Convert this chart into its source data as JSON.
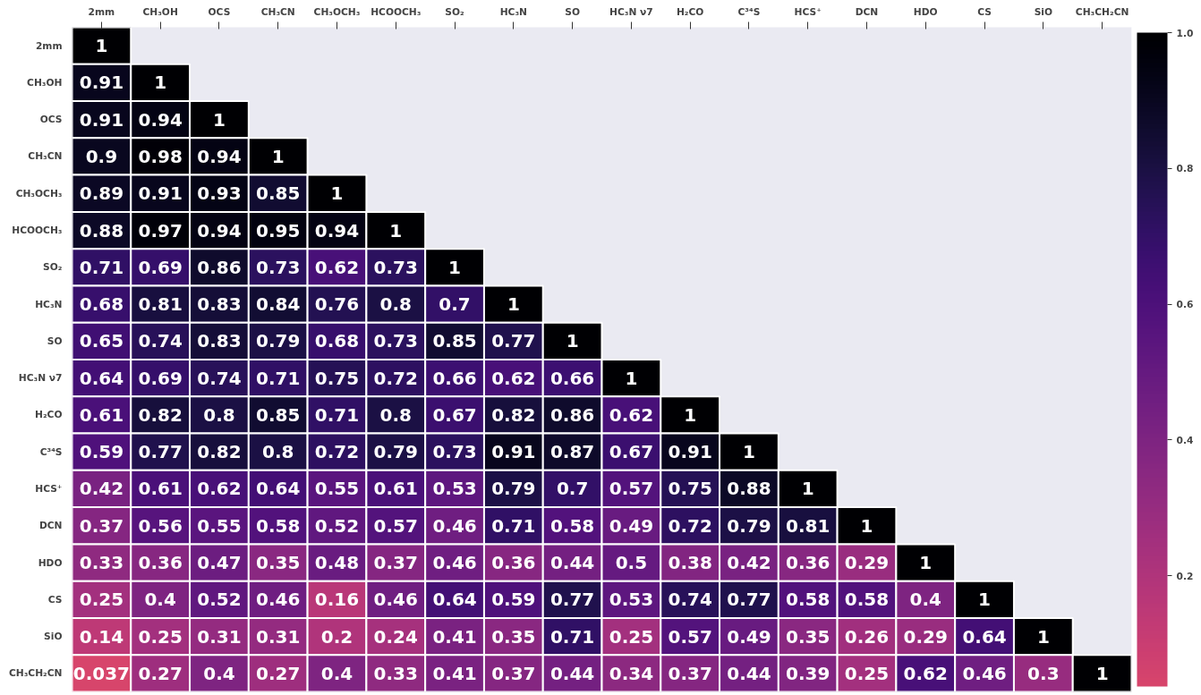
{
  "chart_data": {
    "type": "heatmap",
    "categories": [
      "2mm",
      "CH₃OH",
      "OCS",
      "CH₃CN",
      "CH₃OCH₃",
      "HCOOCH₃",
      "SO₂",
      "HC₃N",
      "SO",
      "HC₃N ν7",
      "H₂CO",
      "C³⁴S",
      "HCS⁺",
      "DCN",
      "HDO",
      "CS",
      "SiO",
      "CH₃CH₂CN"
    ],
    "y_categories": [
      "2mm",
      "CH₃OH",
      "OCS",
      "CH₃CN",
      "CH₃OCH₃",
      "HCOOCH₃",
      "SO₂",
      "HC₃N",
      "SO",
      "HC₃N ν7",
      "H₂CO",
      "C³⁴S",
      "HCS⁺",
      "DCN",
      "HDO",
      "CS",
      "SiO",
      "CH₃CH₂CN"
    ],
    "cells": [
      [
        1,
        null,
        null,
        null,
        null,
        null,
        null,
        null,
        null,
        null,
        null,
        null,
        null,
        null,
        null,
        null,
        null,
        null
      ],
      [
        0.91,
        1,
        null,
        null,
        null,
        null,
        null,
        null,
        null,
        null,
        null,
        null,
        null,
        null,
        null,
        null,
        null,
        null
      ],
      [
        0.91,
        0.94,
        1,
        null,
        null,
        null,
        null,
        null,
        null,
        null,
        null,
        null,
        null,
        null,
        null,
        null,
        null,
        null
      ],
      [
        0.9,
        0.98,
        0.94,
        1,
        null,
        null,
        null,
        null,
        null,
        null,
        null,
        null,
        null,
        null,
        null,
        null,
        null,
        null
      ],
      [
        0.89,
        0.91,
        0.93,
        0.85,
        1,
        null,
        null,
        null,
        null,
        null,
        null,
        null,
        null,
        null,
        null,
        null,
        null,
        null
      ],
      [
        0.88,
        0.97,
        0.94,
        0.95,
        0.94,
        1,
        null,
        null,
        null,
        null,
        null,
        null,
        null,
        null,
        null,
        null,
        null,
        null
      ],
      [
        0.71,
        0.69,
        0.86,
        0.73,
        0.62,
        0.73,
        1,
        null,
        null,
        null,
        null,
        null,
        null,
        null,
        null,
        null,
        null,
        null
      ],
      [
        0.68,
        0.81,
        0.83,
        0.84,
        0.76,
        0.8,
        0.7,
        1,
        null,
        null,
        null,
        null,
        null,
        null,
        null,
        null,
        null,
        null
      ],
      [
        0.65,
        0.74,
        0.83,
        0.79,
        0.68,
        0.73,
        0.85,
        0.77,
        1,
        null,
        null,
        null,
        null,
        null,
        null,
        null,
        null,
        null
      ],
      [
        0.64,
        0.69,
        0.74,
        0.71,
        0.75,
        0.72,
        0.66,
        0.62,
        0.66,
        1,
        null,
        null,
        null,
        null,
        null,
        null,
        null,
        null
      ],
      [
        0.61,
        0.82,
        0.8,
        0.85,
        0.71,
        0.8,
        0.67,
        0.82,
        0.86,
        0.62,
        1,
        null,
        null,
        null,
        null,
        null,
        null,
        null
      ],
      [
        0.59,
        0.77,
        0.82,
        0.8,
        0.72,
        0.79,
        0.73,
        0.91,
        0.87,
        0.67,
        0.91,
        1,
        null,
        null,
        null,
        null,
        null,
        null
      ],
      [
        0.42,
        0.61,
        0.62,
        0.64,
        0.55,
        0.61,
        0.53,
        0.79,
        0.7,
        0.57,
        0.75,
        0.88,
        1,
        null,
        null,
        null,
        null,
        null
      ],
      [
        0.37,
        0.56,
        0.55,
        0.58,
        0.52,
        0.57,
        0.46,
        0.71,
        0.58,
        0.49,
        0.72,
        0.79,
        0.81,
        1,
        null,
        null,
        null,
        null
      ],
      [
        0.33,
        0.36,
        0.47,
        0.35,
        0.48,
        0.37,
        0.46,
        0.36,
        0.44,
        0.5,
        0.38,
        0.42,
        0.36,
        0.29,
        1,
        null,
        null,
        null
      ],
      [
        0.25,
        0.4,
        0.52,
        0.46,
        0.16,
        0.46,
        0.64,
        0.59,
        0.77,
        0.53,
        0.74,
        0.77,
        0.58,
        0.58,
        0.4,
        1,
        null,
        null
      ],
      [
        0.14,
        0.25,
        0.31,
        0.31,
        0.2,
        0.24,
        0.41,
        0.35,
        0.71,
        0.25,
        0.57,
        0.49,
        0.35,
        0.26,
        0.29,
        0.64,
        1,
        null
      ],
      [
        0.037,
        0.27,
        0.4,
        0.27,
        0.4,
        0.33,
        0.41,
        0.37,
        0.44,
        0.34,
        0.37,
        0.44,
        0.39,
        0.25,
        0.62,
        0.46,
        0.3,
        1
      ]
    ],
    "clim": [
      0.037,
      1
    ],
    "cticks": [
      0.2,
      0.4,
      0.6,
      0.8,
      {
        "value": 1,
        "label": "1.0"
      }
    ],
    "data_labels": true,
    "grid": false
  }
}
